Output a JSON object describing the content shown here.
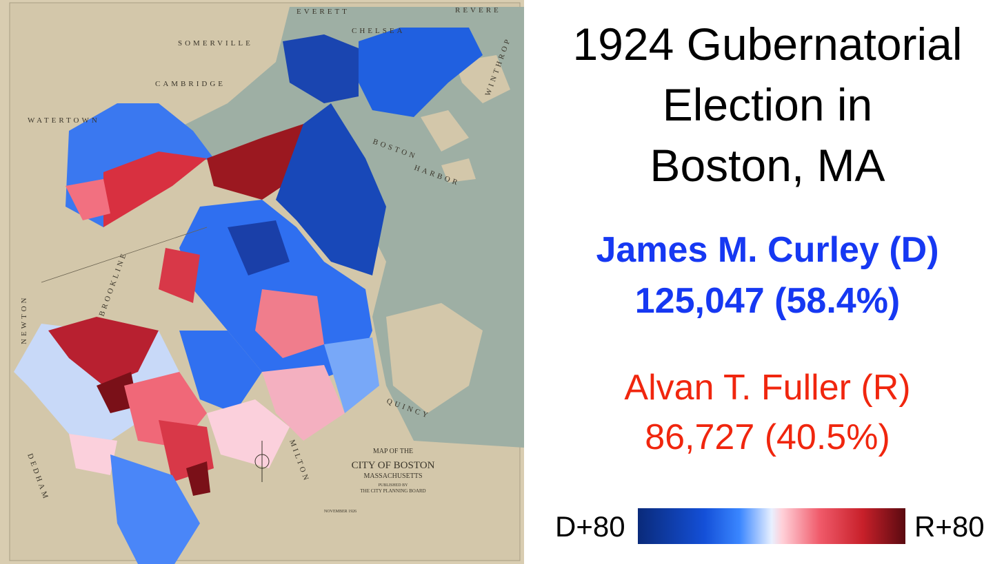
{
  "title": {
    "lines": [
      "1924 Gubernatorial",
      "Election in",
      "Boston, MA"
    ]
  },
  "candidates": [
    {
      "name": "James M. Curley (D)",
      "result": "125,047 (58.4%)",
      "color": "#1638f2"
    },
    {
      "name": "Alvan T. Fuller (R)",
      "result": "86,727 (40.5%)",
      "color": "#f0260e"
    }
  ],
  "legend": {
    "left_label": "D+80",
    "right_label": "R+80"
  },
  "map_labels": {
    "everett": "EVERETT",
    "revere": "REVERE",
    "chelsea": "CHELSEA",
    "somerville": "SOMERVILLE",
    "cambridge": "CAMBRIDGE",
    "watertown": "WATERTOWN",
    "brookline": "BROOKLINE",
    "newton": "NEWTON",
    "dedham": "DEDHAM",
    "milton": "MILTON",
    "quincy": "QUINCY",
    "boston": "BOSTON",
    "harbor": "HARBOR",
    "winthrop": "WINTHROP",
    "cartouche": [
      "MAP OF THE",
      "CITY OF BOSTON",
      "MASSACHUSETTS",
      "PUBLISHED BY",
      "THE CITY PLANNING BOARD"
    ],
    "date": "NOVEMBER 1926"
  }
}
